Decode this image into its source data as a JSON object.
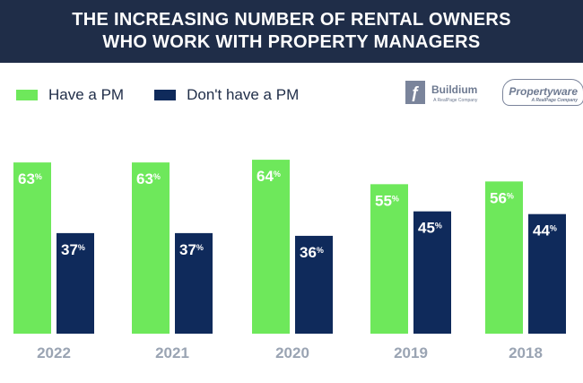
{
  "header": {
    "title_line1": "THE INCREASING NUMBER OF RENTAL OWNERS",
    "title_line2": "WHO WORK WITH PROPERTY MANAGERS"
  },
  "logos": {
    "buildium": "Buildium",
    "buildium_sub": "A RealPage Company",
    "propertyware": "Propertyware",
    "propertyware_sub": "A RealPage Company"
  },
  "chart_data": {
    "type": "bar",
    "title": "THE INCREASING NUMBER OF RENTAL OWNERS WHO WORK WITH PROPERTY MANAGERS",
    "categories": [
      "2022",
      "2021",
      "2020",
      "2019",
      "2018"
    ],
    "series": [
      {
        "name": "Have a PM",
        "color": "#6ee85b",
        "values": [
          63,
          63,
          64,
          55,
          56
        ]
      },
      {
        "name": "Don't have a PM",
        "color": "#0f2a5b",
        "values": [
          37,
          37,
          36,
          45,
          44
        ]
      }
    ],
    "unit": "%",
    "ylim": [
      0,
      100
    ],
    "grid": false,
    "legend": "top-left"
  }
}
